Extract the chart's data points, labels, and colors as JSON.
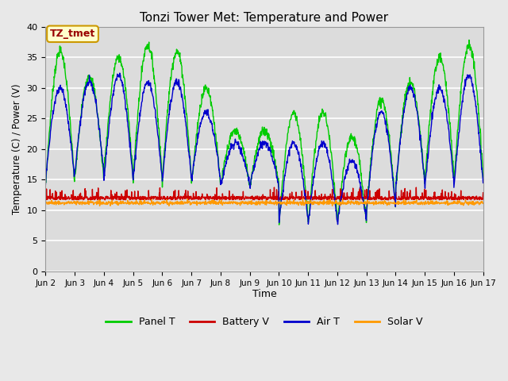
{
  "title": "Tonzi Tower Met: Temperature and Power",
  "xlabel": "Time",
  "ylabel": "Temperature (C) / Power (V)",
  "ylim": [
    0,
    40
  ],
  "yticks": [
    0,
    5,
    10,
    15,
    20,
    25,
    30,
    35,
    40
  ],
  "xtick_labels": [
    "Jun 2",
    "Jun 3",
    "Jun 4",
    "Jun 5",
    "Jun 6",
    "Jun 7",
    "Jun 8",
    "Jun 9",
    "Jun 10",
    "Jun 11",
    "Jun 12",
    "Jun 13",
    "Jun 14",
    "Jun 15",
    "Jun 16",
    "Jun 17"
  ],
  "colors": {
    "panel_t": "#00CC00",
    "battery_v": "#CC0000",
    "air_t": "#0000CC",
    "solar_v": "#FF9900"
  },
  "legend_labels": [
    "Panel T",
    "Battery V",
    "Air T",
    "Solar V"
  ],
  "annotation_text": "TZ_tmet",
  "annotation_color": "#990000",
  "annotation_bg": "#FFFFCC",
  "annotation_border": "#CC9900",
  "bg_color": "#E8E8E8",
  "panel_t_day_peaks": [
    36,
    32,
    35,
    37,
    36,
    30,
    23,
    23,
    26,
    26,
    22,
    28,
    31,
    35,
    37
  ],
  "air_t_day_peaks": [
    30,
    31,
    32,
    31,
    31,
    26,
    21,
    21,
    21,
    21,
    18,
    26,
    30,
    30,
    32
  ],
  "panel_t_night_vals": [
    14,
    15,
    16,
    15,
    15,
    14,
    14,
    14,
    8,
    8,
    8,
    10,
    14,
    15,
    15
  ],
  "air_t_night_vals": [
    15,
    16,
    15,
    15,
    15,
    15,
    14,
    14,
    8,
    8,
    8,
    10,
    14,
    14,
    14
  ],
  "battery_v_base": 12.0,
  "solar_v_base": 11.2,
  "n_days": 15
}
